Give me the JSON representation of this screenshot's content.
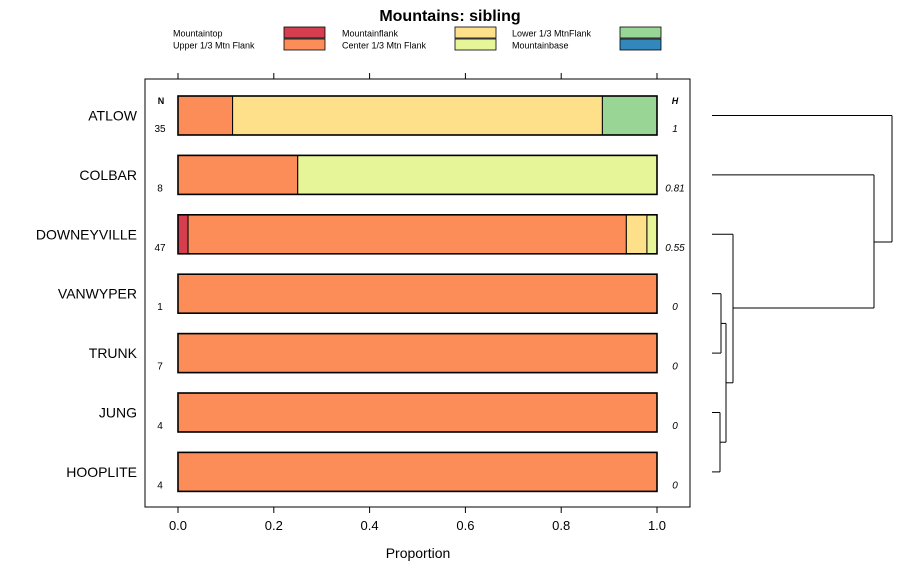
{
  "chart_data": {
    "type": "bar",
    "stacked": true,
    "orientation": "horizontal",
    "title": "Mountains: sibling",
    "xlabel": "Proportion",
    "ylabel": "",
    "xlim": [
      0,
      1
    ],
    "x_ticks": [
      "0.0",
      "0.2",
      "0.4",
      "0.6",
      "0.8",
      "1.0"
    ],
    "n_header": "N",
    "h_header": "H",
    "categories": [
      "ATLOW",
      "COLBAR",
      "DOWNEYVILLE",
      "VANWYPER",
      "TRUNK",
      "JUNG",
      "HOOPLITE"
    ],
    "n_values": [
      "35",
      "8",
      "47",
      "1",
      "7",
      "4",
      "4"
    ],
    "h_values": [
      "1",
      "0.81",
      "0.55",
      "0",
      "0",
      "0",
      "0"
    ],
    "series": [
      {
        "name": "Mountaintop",
        "color": "#d53e4f",
        "values": [
          0,
          0,
          0.021,
          0,
          0,
          0,
          0
        ]
      },
      {
        "name": "Upper 1/3 Mtn Flank",
        "color": "#fc8d59",
        "values": [
          0.114,
          0.25,
          0.915,
          1,
          1,
          1,
          1
        ]
      },
      {
        "name": "Mountainflank",
        "color": "#fee08b",
        "values": [
          0.772,
          0,
          0.043,
          0,
          0,
          0,
          0
        ]
      },
      {
        "name": "Center 1/3 Mtn Flank",
        "color": "#e6f598",
        "values": [
          0,
          0.75,
          0.021,
          0,
          0,
          0,
          0
        ]
      },
      {
        "name": "Lower 1/3 MtnFlank",
        "color": "#99d594",
        "values": [
          0.114,
          0,
          0,
          0,
          0,
          0,
          0
        ]
      },
      {
        "name": "Mountainbase",
        "color": "#3288bd",
        "values": [
          0,
          0,
          0,
          0,
          0,
          0,
          0
        ]
      }
    ],
    "legend_position": "top",
    "grid": false,
    "dendrogram": true
  }
}
